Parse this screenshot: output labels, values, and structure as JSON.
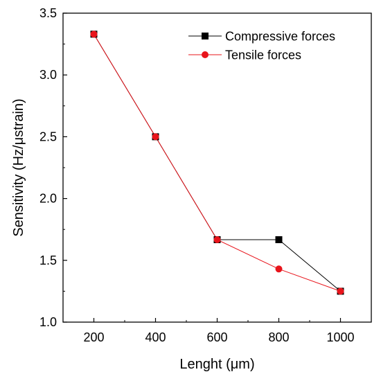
{
  "chart_data": {
    "type": "line",
    "xlabel": "Lenght (μm)",
    "ylabel": "Sensitivity (Hz/μstrain)",
    "xlim": [
      100,
      1100
    ],
    "ylim": [
      1.0,
      3.5
    ],
    "x_ticks": [
      200,
      400,
      600,
      800,
      1000
    ],
    "x_tick_labels": [
      "200",
      "400",
      "600",
      "800",
      "1000"
    ],
    "y_ticks": [
      1.0,
      1.5,
      2.0,
      2.5,
      3.0,
      3.5
    ],
    "y_tick_labels": [
      "1.0",
      "1.5",
      "2.0",
      "2.5",
      "3.0",
      "3.5"
    ],
    "grid": false,
    "legend_position": "top-right",
    "series": [
      {
        "name": "Compressive forces",
        "color": "#000000",
        "marker": "square",
        "x": [
          200,
          400,
          600,
          800,
          1000
        ],
        "values": [
          3.33,
          2.5,
          1.667,
          1.667,
          1.25
        ]
      },
      {
        "name": "Tensile forces",
        "color": "#e8141b",
        "marker": "circle",
        "x": [
          200,
          400,
          600,
          800,
          1000
        ],
        "values": [
          3.33,
          2.5,
          1.667,
          1.43,
          1.25
        ]
      }
    ]
  }
}
